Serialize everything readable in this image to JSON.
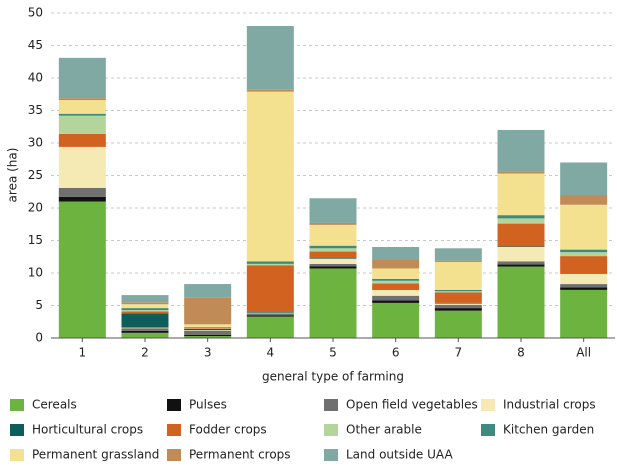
{
  "chart_data": {
    "type": "stacked_bar",
    "x_label": "general type of farming",
    "y_label": "area (ha)",
    "categories": [
      "1",
      "2",
      "3",
      "4",
      "5",
      "6",
      "7",
      "8",
      "All"
    ],
    "ylim": [
      0,
      50
    ],
    "yticks": [
      0,
      5,
      10,
      15,
      20,
      25,
      30,
      35,
      40,
      45,
      50
    ],
    "grid": true,
    "series": [
      {
        "name": "Cereals",
        "color": "#6db33f",
        "values": [
          21,
          0.8,
          0.3,
          3.3,
          10.7,
          5.4,
          4.2,
          11,
          7.4
        ]
      },
      {
        "name": "Pulses",
        "color": "#111111",
        "values": [
          0.7,
          0.3,
          0.2,
          0.2,
          0.3,
          0.4,
          0.4,
          0.3,
          0.4
        ]
      },
      {
        "name": "Open field vegetables",
        "color": "#707070",
        "values": [
          1.4,
          0.4,
          0.6,
          0.3,
          0.4,
          0.7,
          0.5,
          0.5,
          0.5
        ]
      },
      {
        "name": "Industrial crops",
        "color": "#f6eab4",
        "values": [
          6.3,
          0.1,
          0.1,
          0.1,
          0.8,
          0.9,
          0.2,
          2.2,
          1.6
        ]
      },
      {
        "name": "Horticultural crops",
        "color": "#0d5e5a",
        "values": [
          0,
          2.2,
          0.2,
          0.1,
          0.1,
          0.1,
          0.1,
          0.1,
          0.1
        ]
      },
      {
        "name": "Fodder crops",
        "color": "#d2621f",
        "values": [
          2,
          0.3,
          0.1,
          7.2,
          1.0,
          0.9,
          1.6,
          3.5,
          2.6
        ]
      },
      {
        "name": "Other arable",
        "color": "#b3d49b",
        "values": [
          2.8,
          0.2,
          0.1,
          0.2,
          0.5,
          0.4,
          0.2,
          0.8,
          0.6
        ]
      },
      {
        "name": "Kitchen garden",
        "color": "#3e8a7e",
        "values": [
          0.3,
          0.3,
          0.1,
          0.4,
          0.4,
          0.3,
          0.2,
          0.5,
          0.4
        ]
      },
      {
        "name": "Permanent grassland",
        "color": "#f3e190",
        "values": [
          2.1,
          0.6,
          0.4,
          26.1,
          3.2,
          1.6,
          4.3,
          6.4,
          6.9
        ]
      },
      {
        "name": "Permanent crops",
        "color": "#c08b56",
        "values": [
          0.3,
          0.3,
          4.1,
          0.3,
          0.3,
          1.3,
          0.2,
          0.3,
          1.5
        ]
      },
      {
        "name": "Land outside UAA",
        "color": "#80a9a4",
        "values": [
          6.2,
          1.1,
          2.1,
          9.8,
          3.8,
          2.0,
          1.9,
          6.4,
          5.0
        ]
      }
    ]
  }
}
